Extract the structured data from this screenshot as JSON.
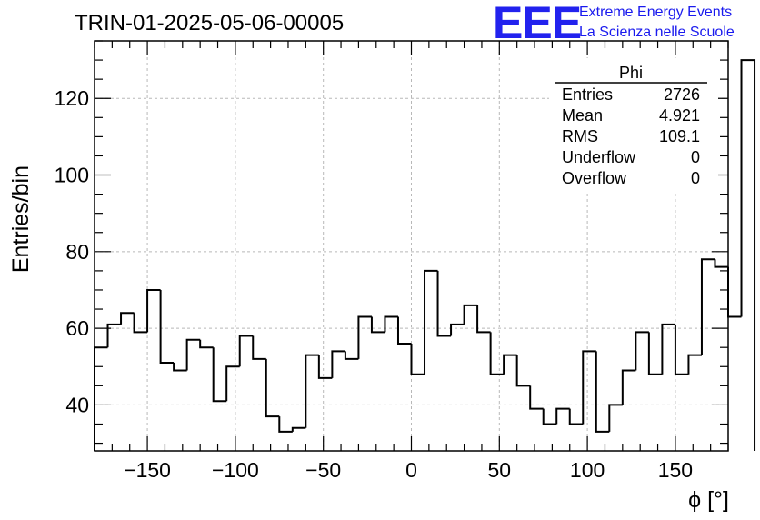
{
  "chart_data": {
    "type": "histogram",
    "title": "TRIN-01-2025-05-06-00005",
    "xlabel": "ϕ [°]",
    "ylabel": "Entries/bin",
    "xlim": [
      -180,
      180
    ],
    "ylim": [
      28,
      135
    ],
    "bin_width": 7.5,
    "grid": true,
    "x_ticks": [
      -150,
      -100,
      -50,
      0,
      50,
      100,
      150
    ],
    "x_tick_labels": [
      "−150",
      "−100",
      "−50",
      "0",
      "50",
      "100",
      "150"
    ],
    "y_ticks": [
      40,
      60,
      80,
      100,
      120
    ],
    "y_tick_labels": [
      "40",
      "60",
      "80",
      "100",
      "120"
    ],
    "values": [
      55,
      61,
      64,
      59,
      70,
      51,
      49,
      57,
      55,
      41,
      50,
      58,
      52,
      37,
      33,
      34,
      53,
      47,
      54,
      52,
      63,
      59,
      63,
      56,
      48,
      75,
      58,
      61,
      66,
      59,
      48,
      53,
      45,
      39,
      35,
      39,
      35,
      54,
      33,
      40,
      49,
      59,
      48,
      61,
      48,
      53,
      78,
      76,
      63,
      130
    ],
    "line_color": "#000000"
  },
  "stats": {
    "name": "Phi",
    "rows": [
      {
        "label": "Entries",
        "value": "2726"
      },
      {
        "label": "Mean",
        "value": "4.921"
      },
      {
        "label": "RMS",
        "value": "109.1"
      },
      {
        "label": "Underflow",
        "value": "0"
      },
      {
        "label": "Overflow",
        "value": "0"
      }
    ]
  },
  "branding": {
    "logo": "EEE",
    "line1": "Extreme Energy Events",
    "line2": "La Scienza nelle Scuole",
    "color": "#2222ee"
  }
}
